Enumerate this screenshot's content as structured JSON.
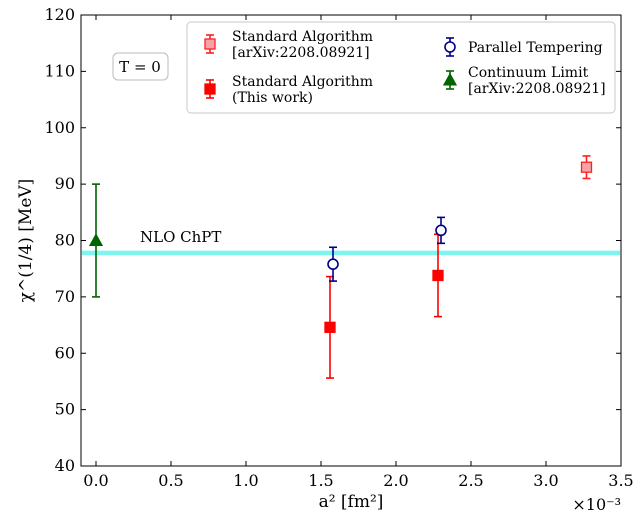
{
  "chart_data": {
    "type": "scatter",
    "xlabel": "a² [fm²]",
    "ylabel": "χ^(1/4) [MeV]",
    "x_scale_label": "×10⁻³",
    "xlim": [
      -0.0001,
      0.0035
    ],
    "ylim": [
      40,
      120
    ],
    "x_ticks": [
      0.0,
      0.5,
      1.0,
      1.5,
      2.0,
      2.5,
      3.0,
      3.5
    ],
    "x_tick_labels": [
      "0.0",
      "0.5",
      "1.0",
      "1.5",
      "2.0",
      "2.5",
      "3.0",
      "3.5"
    ],
    "y_ticks": [
      40,
      50,
      60,
      70,
      80,
      90,
      100,
      110,
      120
    ],
    "y_tick_labels": [
      "40",
      "50",
      "60",
      "70",
      "80",
      "90",
      "100",
      "110",
      "120"
    ],
    "grid": false,
    "legend_position": "top-right",
    "band": {
      "label": "NLO ChPT",
      "y_low": 77.4,
      "y_high": 78.2,
      "color": "#7ff5f0"
    },
    "annotation": "T = 0",
    "series": [
      {
        "name": "Standard Algorithm [arXiv:2208.08921]",
        "legend_lines": [
          "Standard Algorithm",
          "[arXiv:2208.08921]"
        ],
        "marker": "square-light",
        "color": "#ff2020",
        "fill": "#f4a3a8",
        "points": [
          {
            "x": 0.00327,
            "y": 93.0,
            "err": 2.0
          }
        ]
      },
      {
        "name": "Standard Algorithm (This work)",
        "legend_lines": [
          "Standard Algorithm",
          "(This work)"
        ],
        "marker": "square",
        "color": "#ff0000",
        "fill": "#ff0000",
        "points": [
          {
            "x": 0.00156,
            "y": 64.6,
            "err": 9.0
          },
          {
            "x": 0.00228,
            "y": 73.8,
            "err": 7.3
          }
        ]
      },
      {
        "name": "Parallel Tempering",
        "legend_lines": [
          "Parallel Tempering"
        ],
        "marker": "circle-open",
        "color": "#00008b",
        "fill": "#ffffff",
        "points": [
          {
            "x": 0.00158,
            "y": 75.8,
            "err": 3.0
          },
          {
            "x": 0.0023,
            "y": 81.8,
            "err": 2.3
          }
        ]
      },
      {
        "name": "Continuum Limit [arXiv:2208.08921]",
        "legend_lines": [
          "Continuum Limit",
          "[arXiv:2208.08921]"
        ],
        "marker": "triangle",
        "color": "#006400",
        "fill": "#006400",
        "points": [
          {
            "x": 0.0,
            "y": 80.0,
            "err": 10.0
          }
        ]
      }
    ]
  }
}
